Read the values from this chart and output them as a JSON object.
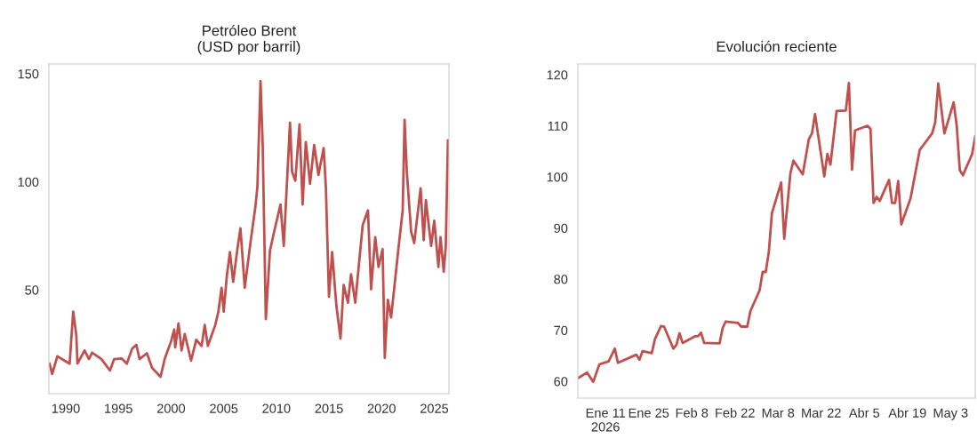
{
  "chart_data": [
    {
      "type": "line",
      "title": "Petróleo Brent\n(USD por barril)",
      "grid": false,
      "x": [
        "1988-06-15",
        "1988-09-15",
        "1989-03-15",
        "1989-11-15",
        "1990-05-15",
        "1990-09-15",
        "1991-01-01",
        "1991-02-10",
        "1991-10-15",
        "1992-03-15",
        "1992-07-01",
        "1993-05-25",
        "1994-03-15",
        "1994-08-05",
        "1995-04-20",
        "1995-10-20",
        "1996-04-20",
        "1996-09-15",
        "1997-01-01",
        "1997-09-15",
        "1998-03-15",
        "1999-01-01",
        "1999-05-25",
        "2000-01-01",
        "2000-04-20",
        "2000-05-25",
        "2000-09-15",
        "2001-01-01",
        "2001-04-20",
        "2001-11-25",
        "2002-05-25",
        "2002-11-25",
        "2003-03-15",
        "2003-07-01",
        "2004-03-15",
        "2004-07-01",
        "2004-10-20",
        "2005-01-01",
        "2005-04-20",
        "2005-08-05",
        "2005-11-25",
        "2006-04-20",
        "2006-08-05",
        "2007-01-01",
        "2007-08-05",
        "2008-01-01",
        "2008-03-15",
        "2008-07-01",
        "2008-09-15",
        "2009-01-01",
        "2009-05-25",
        "2009-10-20",
        "2010-05-25",
        "2010-09-15",
        "2011-04-20",
        "2011-07-01",
        "2011-10-20",
        "2012-03-15",
        "2012-07-01",
        "2012-10-20",
        "2013-03-15",
        "2013-08-05",
        "2014-01-01",
        "2014-07-01",
        "2014-09-15",
        "2015-01-01",
        "2015-04-20",
        "2015-09-15",
        "2016-02-05",
        "2016-05-25",
        "2016-10-20",
        "2017-02-05",
        "2017-07-01",
        "2018-03-15",
        "2018-09-15",
        "2019-01-01",
        "2019-05-25",
        "2019-09-15",
        "2020-02-05",
        "2020-04-20",
        "2020-08-05",
        "2020-11-25",
        "2021-08-05",
        "2022-01-01",
        "2022-03-08",
        "2022-05-25",
        "2022-10-20",
        "2023-02-05",
        "2023-09-15",
        "2024-01-01",
        "2024-03-15",
        "2024-09-15",
        "2025-01-01",
        "2025-05-25",
        "2025-08-05",
        "2025-11-25",
        "2026-02-05",
        "2026-04-20"
      ],
      "series": [
        {
          "color": "#c0504d",
          "values": [
            15.9,
            11.1,
            19.3,
            17.3,
            15.9,
            40,
            29,
            15.9,
            22,
            18,
            21,
            18,
            12.7,
            18,
            18.3,
            15.9,
            22.8,
            24.6,
            18,
            20.7,
            13.9,
            9.8,
            18,
            26.2,
            31.7,
            23.4,
            34.5,
            22,
            29.6,
            17.3,
            26.9,
            24.1,
            33.8,
            24.1,
            33.8,
            40,
            51,
            40,
            56.5,
            67.5,
            53.7,
            68.9,
            78.5,
            51,
            73.7,
            88,
            97.6,
            146.6,
            117,
            36.5,
            68.2,
            77.1,
            89.5,
            70.3,
            127.3,
            104.6,
            100.5,
            126.6,
            89.5,
            118.4,
            99.1,
            117,
            103.2,
            115.6,
            97.6,
            46.8,
            67.5,
            42.7,
            27.5,
            52.3,
            44.1,
            57.2,
            44.1,
            79.9,
            86.8,
            50.3,
            74.4,
            60.6,
            68.9,
            18.6,
            45.4,
            37.2,
            68.9,
            86.8,
            128.7,
            104.6,
            77.1,
            71.6,
            97,
            73,
            91.6,
            70.3,
            82,
            60.6,
            74.4,
            58.5,
            70.3,
            119.1
          ]
        }
      ],
      "xlim": [
        "1988-05-25",
        "2026-05-25"
      ],
      "xticks": [
        "1990",
        "1995",
        "2000",
        "2005",
        "2010",
        "2015",
        "2020",
        "2025"
      ],
      "ylim": [
        2,
        154.5
      ],
      "yticks": [
        50,
        100,
        150
      ]
    },
    {
      "type": "line",
      "title": "Evolución reciente",
      "grid": false,
      "x": [
        "2026-01-02",
        "2026-01-05",
        "2026-01-07",
        "2026-01-09",
        "2026-01-12",
        "2026-01-14",
        "2026-01-15",
        "2026-01-21",
        "2026-01-22",
        "2026-01-23",
        "2026-01-26",
        "2026-01-27",
        "2026-01-29",
        "2026-01-30",
        "2026-02-02",
        "2026-02-03",
        "2026-02-04",
        "2026-02-05",
        "2026-02-09",
        "2026-02-10",
        "2026-02-11",
        "2026-02-12",
        "2026-02-17",
        "2026-02-18",
        "2026-02-19",
        "2026-02-23",
        "2026-02-24",
        "2026-02-26",
        "2026-02-27",
        "2026-03-02",
        "2026-03-03",
        "2026-03-04",
        "2026-03-05",
        "2026-03-06",
        "2026-03-09",
        "2026-03-10",
        "2026-03-12",
        "2026-03-13",
        "2026-03-16",
        "2026-03-18",
        "2026-03-19",
        "2026-03-20",
        "2026-03-23",
        "2026-03-24",
        "2026-03-25",
        "2026-03-27",
        "2026-03-30",
        "2026-03-31",
        "2026-04-01",
        "2026-04-02",
        "2026-04-06",
        "2026-04-07",
        "2026-04-08",
        "2026-04-09",
        "2026-04-10",
        "2026-04-13",
        "2026-04-14",
        "2026-04-15",
        "2026-04-16",
        "2026-04-17",
        "2026-04-20",
        "2026-04-23",
        "2026-04-24",
        "2026-04-27",
        "2026-04-28",
        "2026-04-29",
        "2026-05-01",
        "2026-05-04",
        "2026-05-05",
        "2026-05-06",
        "2026-05-07",
        "2026-05-10",
        "2026-05-11"
      ],
      "series": [
        {
          "color": "#c0504d",
          "values": [
            60.6,
            61.7,
            59.9,
            63.3,
            63.9,
            66.4,
            63.6,
            65.2,
            64.2,
            65.9,
            65.5,
            68.2,
            70.8,
            70.7,
            66.4,
            67.1,
            69.4,
            67.5,
            68.8,
            68.8,
            69.5,
            67.5,
            67.4,
            70.4,
            71.7,
            71.4,
            70.7,
            70.7,
            73.7,
            77.8,
            81.4,
            81.4,
            85.3,
            92.9,
            98.9,
            87.9,
            100.7,
            103.2,
            100.5,
            107.4,
            108.5,
            112.3,
            100.1,
            104.5,
            102.4,
            112.9,
            113,
            118.4,
            101.4,
            109.1,
            110,
            109.4,
            94.9,
            96.1,
            95.3,
            99.4,
            94.9,
            94.9,
            99.2,
            90.7,
            95.8,
            105.3,
            106.1,
            108.5,
            110.6,
            118.3,
            108.5,
            114.6,
            110,
            101.3,
            100.3,
            104.5,
            107.9
          ]
        }
      ],
      "xlim": [
        "2026-01-02",
        "2026-05-11"
      ],
      "xticks": [
        {
          "value": "2026-01-11",
          "label": "Ene 11\n2026"
        },
        {
          "value": "2026-01-25",
          "label": "Ene 25"
        },
        {
          "value": "2026-02-08",
          "label": "Feb 8"
        },
        {
          "value": "2026-02-22",
          "label": "Feb 22"
        },
        {
          "value": "2026-03-08",
          "label": "Mar 8"
        },
        {
          "value": "2026-03-22",
          "label": "Mar 22"
        },
        {
          "value": "2026-04-05",
          "label": "Abr 5"
        },
        {
          "value": "2026-04-19",
          "label": "Abr 19"
        },
        {
          "value": "2026-05-03",
          "label": "May 3"
        }
      ],
      "ylim": [
        56.7,
        122.1
      ],
      "yticks": [
        60,
        70,
        80,
        90,
        100,
        110,
        120
      ]
    }
  ]
}
